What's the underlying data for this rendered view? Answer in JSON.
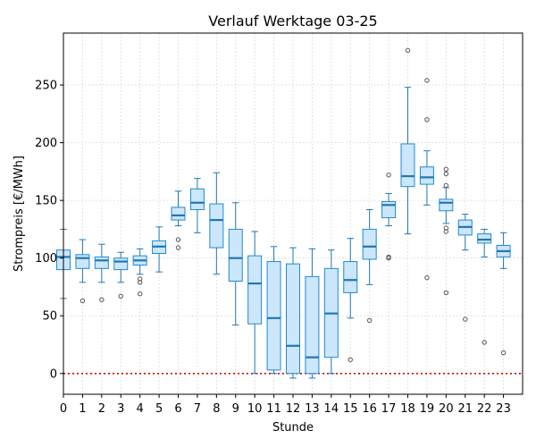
{
  "chart_data": {
    "type": "box",
    "title": "Verlauf Werktage 03-25",
    "xlabel": "Stunde",
    "ylabel": "Strompreis [€/MWh]",
    "xlim": [
      0,
      24
    ],
    "ylim": [
      -18,
      295
    ],
    "y_ticks": [
      0,
      50,
      100,
      150,
      200,
      250
    ],
    "x_ticks": [
      0,
      1,
      2,
      3,
      4,
      5,
      6,
      7,
      8,
      9,
      10,
      11,
      12,
      13,
      14,
      15,
      16,
      17,
      18,
      19,
      20,
      21,
      22,
      23
    ],
    "grid": true,
    "reference_line": {
      "y": 0,
      "color": "#dd0000",
      "style": "dotted"
    },
    "colors": {
      "box_fill": "#cce6fb",
      "box_edge": "#1f8ad1",
      "median": "#1f77b4",
      "whisker": "#1f77b4",
      "flier": "#555555"
    },
    "boxes": [
      {
        "hour": 0,
        "whislo": 65,
        "q1": 90,
        "med": 101,
        "q3": 107,
        "whishi": 125,
        "fliers": []
      },
      {
        "hour": 1,
        "whislo": 79,
        "q1": 91,
        "med": 100,
        "q3": 103,
        "whishi": 116,
        "fliers": [
          63
        ]
      },
      {
        "hour": 2,
        "whislo": 79,
        "q1": 91,
        "med": 98,
        "q3": 101,
        "whishi": 112,
        "fliers": [
          64
        ]
      },
      {
        "hour": 3,
        "whislo": 79,
        "q1": 90,
        "med": 97,
        "q3": 100,
        "whishi": 105,
        "fliers": [
          67
        ]
      },
      {
        "hour": 4,
        "whislo": 86,
        "q1": 94,
        "med": 98,
        "q3": 102,
        "whishi": 108,
        "fliers": [
          82,
          79,
          69
        ]
      },
      {
        "hour": 5,
        "whislo": 88,
        "q1": 104,
        "med": 110,
        "q3": 115,
        "whishi": 127,
        "fliers": []
      },
      {
        "hour": 6,
        "whislo": 128,
        "q1": 133,
        "med": 137,
        "q3": 144,
        "whishi": 158,
        "fliers": [
          116,
          109
        ]
      },
      {
        "hour": 7,
        "whislo": 122,
        "q1": 142,
        "med": 148,
        "q3": 160,
        "whishi": 169,
        "fliers": []
      },
      {
        "hour": 8,
        "whislo": 86,
        "q1": 109,
        "med": 133,
        "q3": 147,
        "whishi": 174,
        "fliers": []
      },
      {
        "hour": 9,
        "whislo": 42,
        "q1": 80,
        "med": 100,
        "q3": 125,
        "whishi": 148,
        "fliers": []
      },
      {
        "hour": 10,
        "whislo": 0,
        "q1": 43,
        "med": 78,
        "q3": 102,
        "whishi": 123,
        "fliers": []
      },
      {
        "hour": 11,
        "whislo": 0,
        "q1": 3,
        "med": 48,
        "q3": 97,
        "whishi": 110,
        "fliers": []
      },
      {
        "hour": 12,
        "whislo": -4,
        "q1": 0,
        "med": 24,
        "q3": 95,
        "whishi": 109,
        "fliers": []
      },
      {
        "hour": 13,
        "whislo": -4,
        "q1": 0,
        "med": 14,
        "q3": 84,
        "whishi": 108,
        "fliers": []
      },
      {
        "hour": 14,
        "whislo": 0,
        "q1": 14,
        "med": 52,
        "q3": 91,
        "whishi": 107,
        "fliers": []
      },
      {
        "hour": 15,
        "whislo": 48,
        "q1": 70,
        "med": 81,
        "q3": 97,
        "whishi": 117,
        "fliers": [
          12
        ]
      },
      {
        "hour": 16,
        "whislo": 77,
        "q1": 99,
        "med": 110,
        "q3": 125,
        "whishi": 142,
        "fliers": [
          46
        ]
      },
      {
        "hour": 17,
        "whislo": 128,
        "q1": 135,
        "med": 146,
        "q3": 149,
        "whishi": 156,
        "fliers": [
          172,
          101,
          100
        ]
      },
      {
        "hour": 18,
        "whislo": 121,
        "q1": 162,
        "med": 171,
        "q3": 199,
        "whishi": 248,
        "fliers": [
          280
        ]
      },
      {
        "hour": 19,
        "whislo": 146,
        "q1": 164,
        "med": 170,
        "q3": 179,
        "whishi": 193,
        "fliers": [
          254,
          220,
          83
        ]
      },
      {
        "hour": 20,
        "whislo": 130,
        "q1": 141,
        "med": 148,
        "q3": 151,
        "whishi": 161,
        "fliers": [
          177,
          173,
          163,
          126,
          123,
          70
        ]
      },
      {
        "hour": 21,
        "whislo": 107,
        "q1": 120,
        "med": 127,
        "q3": 133,
        "whishi": 138,
        "fliers": [
          47
        ]
      },
      {
        "hour": 22,
        "whislo": 101,
        "q1": 113,
        "med": 116,
        "q3": 121,
        "whishi": 125,
        "fliers": [
          27
        ]
      },
      {
        "hour": 23,
        "whislo": 91,
        "q1": 101,
        "med": 106,
        "q3": 111,
        "whishi": 122,
        "fliers": [
          18
        ]
      }
    ]
  }
}
